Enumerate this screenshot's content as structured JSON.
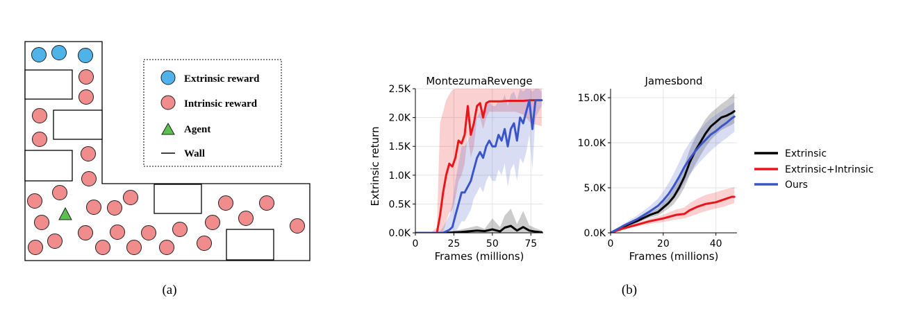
{
  "panel_a": {
    "caption": "(a)",
    "legend": {
      "extrinsic": "Extrinsic reward",
      "intrinsic": "Intrinsic reward",
      "agent": "Agent",
      "wall": "Wall"
    },
    "colors": {
      "extrinsic": "#4fb3ea",
      "intrinsic": "#f08c8c",
      "agent": "#5cbf4f",
      "wall": "#000000"
    }
  },
  "panel_b": {
    "caption": "(b)"
  },
  "legend": {
    "items": [
      {
        "label": "Extrinsic",
        "color": "#000000"
      },
      {
        "label": "Extrinsic+Intrinsic",
        "color": "#e8161b"
      },
      {
        "label": "Ours",
        "color": "#3a55c8"
      }
    ]
  },
  "chart_data": [
    {
      "type": "line",
      "title": "MontezumaRevenge",
      "xlabel": "Frames (millions)",
      "ylabel": "Extrinsic return",
      "xlim": [
        0,
        83
      ],
      "ylim": [
        0,
        2500
      ],
      "xticks": [
        0,
        25,
        50,
        75
      ],
      "xtick_labels": [
        "0",
        "25",
        "50",
        "75"
      ],
      "yticks": [
        0,
        500,
        1000,
        1500,
        2000,
        2500
      ],
      "ytick_labels": [
        "0.0K",
        "0.5K",
        "1.0K",
        "1.5K",
        "2.0K",
        "2.5K"
      ],
      "grid": true,
      "series": [
        {
          "name": "Extrinsic",
          "color": "#000000",
          "x": [
            0,
            10,
            20,
            30,
            40,
            45,
            50,
            55,
            58,
            62,
            66,
            70,
            74,
            78,
            82
          ],
          "y": [
            0,
            0,
            0,
            15,
            40,
            30,
            60,
            25,
            90,
            120,
            40,
            100,
            40,
            20,
            10
          ],
          "lower": [
            0,
            0,
            0,
            0,
            0,
            0,
            0,
            0,
            0,
            0,
            0,
            0,
            0,
            0,
            0
          ],
          "upper": [
            0,
            0,
            10,
            60,
            120,
            70,
            250,
            100,
            300,
            420,
            150,
            380,
            130,
            80,
            40
          ]
        },
        {
          "name": "Extrinsic+Intrinsic",
          "color": "#e8161b",
          "x": [
            0,
            10,
            14,
            16,
            18,
            20,
            22,
            24,
            26,
            28,
            30,
            32,
            34,
            36,
            38,
            40,
            42,
            44,
            46,
            48,
            50,
            55,
            60,
            65,
            70,
            75,
            82
          ],
          "y": [
            0,
            0,
            0,
            300,
            700,
            1000,
            1200,
            1150,
            1300,
            1600,
            1550,
            1700,
            2200,
            1700,
            1900,
            2200,
            2250,
            2000,
            2250,
            2280,
            2280,
            2280,
            2290,
            2290,
            2290,
            2300,
            2300
          ],
          "lower": [
            0,
            0,
            0,
            0,
            0,
            200,
            350,
            400,
            600,
            900,
            1000,
            1200,
            1700,
            1300,
            1500,
            2000,
            2000,
            1800,
            2000,
            2100,
            2100,
            2100,
            2100,
            2100,
            2050,
            1900,
            1850
          ],
          "upper": [
            0,
            0,
            100,
            1900,
            2100,
            2300,
            2400,
            2480,
            2500,
            2500,
            2500,
            2500,
            2500,
            2500,
            2500,
            2500,
            2500,
            2500,
            2500,
            2500,
            2500,
            2500,
            2500,
            2500,
            2500,
            2500,
            2500
          ]
        },
        {
          "name": "Ours",
          "color": "#3a55c8",
          "x": [
            0,
            15,
            18,
            22,
            24,
            26,
            28,
            30,
            32,
            34,
            36,
            38,
            40,
            42,
            44,
            46,
            48,
            50,
            52,
            54,
            56,
            58,
            60,
            62,
            64,
            66,
            68,
            70,
            72,
            74,
            76,
            78,
            80,
            82
          ],
          "y": [
            0,
            0,
            0,
            50,
            100,
            300,
            500,
            700,
            700,
            800,
            900,
            1100,
            1300,
            1400,
            1300,
            1500,
            1600,
            1500,
            1500,
            1700,
            1600,
            1800,
            1500,
            1800,
            1900,
            1600,
            2000,
            1900,
            2100,
            2300,
            1800,
            2300,
            2300,
            2300
          ],
          "lower": [
            0,
            0,
            0,
            0,
            0,
            0,
            100,
            200,
            200,
            300,
            400,
            600,
            700,
            800,
            700,
            900,
            1000,
            900,
            900,
            1100,
            1000,
            1200,
            800,
            1100,
            1200,
            900,
            1300,
            1200,
            1400,
            1700,
            1100,
            2000,
            2100,
            2200
          ],
          "upper": [
            0,
            0,
            100,
            300,
            500,
            900,
            1200,
            1500,
            1500,
            1600,
            1700,
            1900,
            2000,
            2100,
            2000,
            2200,
            2300,
            2200,
            2200,
            2300,
            2250,
            2400,
            2200,
            2400,
            2450,
            2300,
            2500,
            2450,
            2500,
            2500,
            2450,
            2500,
            2500,
            2450
          ]
        }
      ]
    },
    {
      "type": "line",
      "title": "Jamesbond",
      "xlabel": "Frames (millions)",
      "ylabel": "",
      "xlim": [
        0,
        48
      ],
      "ylim": [
        0,
        16000
      ],
      "xticks": [
        0,
        20,
        40
      ],
      "xtick_labels": [
        "0",
        "20",
        "40"
      ],
      "yticks": [
        0,
        5000,
        10000,
        15000
      ],
      "ytick_labels": [
        "0.0K",
        "5.0K",
        "10.0K",
        "15.0K"
      ],
      "grid": true,
      "series": [
        {
          "name": "Extrinsic",
          "color": "#000000",
          "x": [
            0,
            5,
            10,
            15,
            18,
            20,
            22,
            24,
            26,
            28,
            30,
            32,
            34,
            36,
            38,
            40,
            42,
            44,
            46,
            47
          ],
          "y": [
            0,
            700,
            1300,
            2000,
            2300,
            2800,
            3300,
            4000,
            5000,
            6200,
            7800,
            9000,
            10000,
            11000,
            11800,
            12300,
            12800,
            13000,
            13300,
            13500
          ],
          "lower": [
            0,
            600,
            1100,
            1700,
            1900,
            2300,
            2700,
            3200,
            4000,
            5000,
            6400,
            7500,
            8500,
            9500,
            10300,
            10900,
            11400,
            11700,
            12000,
            12200
          ],
          "upper": [
            0,
            800,
            1500,
            2300,
            2700,
            3400,
            4000,
            5000,
            6200,
            7500,
            9200,
            10500,
            11600,
            12600,
            13300,
            13800,
            14300,
            14700,
            15200,
            15500
          ]
        },
        {
          "name": "Extrinsic+Intrinsic",
          "color": "#e8161b",
          "x": [
            0,
            5,
            10,
            15,
            20,
            25,
            28,
            30,
            33,
            36,
            40,
            43,
            46,
            47
          ],
          "y": [
            0,
            500,
            900,
            1300,
            1600,
            2000,
            2100,
            2500,
            2900,
            3200,
            3400,
            3700,
            4000,
            4000
          ],
          "lower": [
            0,
            400,
            700,
            1000,
            1200,
            1500,
            1600,
            1800,
            2100,
            2400,
            2700,
            2900,
            3200,
            3300
          ],
          "upper": [
            0,
            600,
            1100,
            1600,
            2000,
            2600,
            2800,
            3300,
            3800,
            4200,
            4500,
            4800,
            5000,
            5100
          ]
        },
        {
          "name": "Ours",
          "color": "#3a55c8",
          "x": [
            0,
            5,
            10,
            15,
            18,
            20,
            22,
            24,
            26,
            28,
            30,
            32,
            34,
            36,
            38,
            40,
            42,
            44,
            46,
            47
          ],
          "y": [
            0,
            800,
            1500,
            2400,
            3000,
            3600,
            4300,
            5200,
            6200,
            7300,
            8200,
            9000,
            9700,
            10300,
            10900,
            11300,
            11800,
            12200,
            12700,
            12900
          ],
          "lower": [
            0,
            600,
            1100,
            1800,
            2200,
            2600,
            3100,
            3800,
            4600,
            5500,
            6400,
            7200,
            7900,
            8500,
            9100,
            9600,
            10100,
            10500,
            11000,
            11200
          ],
          "upper": [
            0,
            1000,
            1900,
            3000,
            3800,
            4600,
            5500,
            6600,
            7800,
            9100,
            10000,
            10800,
            11500,
            12100,
            12700,
            13100,
            13500,
            13900,
            14300,
            14500
          ]
        }
      ]
    }
  ]
}
